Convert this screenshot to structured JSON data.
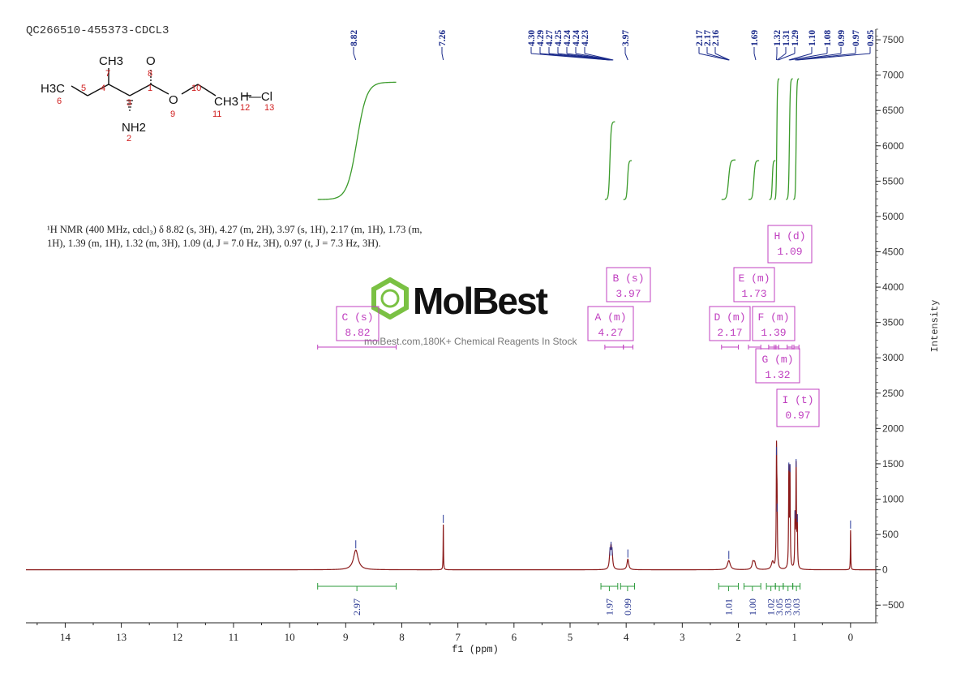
{
  "chart_data": {
    "type": "line",
    "title": "QC266510-455373-CDCL3",
    "xlabel": "f1 (ppm)",
    "ylabel": "Intensity",
    "xlim": [
      14.7,
      -0.45
    ],
    "ylim": [
      -750,
      7650
    ],
    "x_ticks": [
      14,
      13,
      12,
      11,
      10,
      9,
      8,
      7,
      6,
      5,
      4,
      3,
      2,
      1,
      0
    ],
    "y_ticks": [
      -500,
      0,
      500,
      1000,
      1500,
      2000,
      2500,
      3000,
      3500,
      4000,
      4500,
      5000,
      5500,
      6000,
      6500,
      7000,
      7500
    ],
    "peak_labels": [
      "8.82",
      "7.26",
      "4.30",
      "4.29",
      "4.27",
      "4.25",
      "4.24",
      "4.24",
      "4.23",
      "3.97",
      "2.17",
      "2.17",
      "2.16",
      "1.69",
      "1.32",
      "1.31",
      "1.29",
      "1.10",
      "1.08",
      "0.99",
      "0.97",
      "0.95"
    ],
    "peaks": [
      {
        "x": 8.82,
        "h": 280,
        "w": 0.05
      },
      {
        "x": 7.26,
        "h": 640,
        "w": 0.004
      },
      {
        "x": 4.29,
        "h": 180,
        "w": 0.013
      },
      {
        "x": 4.27,
        "h": 260,
        "w": 0.013
      },
      {
        "x": 4.25,
        "h": 180,
        "w": 0.013
      },
      {
        "x": 3.97,
        "h": 150,
        "w": 0.018
      },
      {
        "x": 2.17,
        "h": 130,
        "w": 0.03
      },
      {
        "x": 1.74,
        "h": 100,
        "w": 0.02
      },
      {
        "x": 1.71,
        "h": 90,
        "w": 0.02
      },
      {
        "x": 1.39,
        "h": 110,
        "w": 0.025
      },
      {
        "x": 1.32,
        "h": 1600,
        "w": 0.006
      },
      {
        "x": 1.31,
        "h": 800,
        "w": 0.006
      },
      {
        "x": 1.1,
        "h": 1380,
        "w": 0.006
      },
      {
        "x": 1.08,
        "h": 1360,
        "w": 0.006
      },
      {
        "x": 0.99,
        "h": 700,
        "w": 0.006
      },
      {
        "x": 0.97,
        "h": 1430,
        "w": 0.006
      },
      {
        "x": 0.95,
        "h": 650,
        "w": 0.006
      },
      {
        "x": 0.0,
        "h": 560,
        "w": 0.004
      }
    ],
    "integral_curves": [
      {
        "x_start": 9.5,
        "x_end": 8.1,
        "y_start": 5240,
        "y_end": 6900,
        "center": 8.82
      },
      {
        "x_start": 4.38,
        "x_end": 4.2,
        "y_start": 5240,
        "y_end": 6340,
        "center": 4.27
      },
      {
        "x_start": 4.05,
        "x_end": 3.9,
        "y_start": 5240,
        "y_end": 5790,
        "center": 3.97
      },
      {
        "x_start": 2.3,
        "x_end": 2.05,
        "y_start": 5240,
        "y_end": 5800,
        "center": 2.17
      },
      {
        "x_start": 1.82,
        "x_end": 1.63,
        "y_start": 5240,
        "y_end": 5790,
        "center": 1.73
      },
      {
        "x_start": 1.45,
        "x_end": 1.34,
        "y_start": 5240,
        "y_end": 5790,
        "center": 1.39
      },
      {
        "x_start": 1.36,
        "x_end": 1.27,
        "y_start": 5240,
        "y_end": 6950,
        "center": 1.32
      },
      {
        "x_start": 1.15,
        "x_end": 1.03,
        "y_start": 5240,
        "y_end": 6950,
        "center": 1.09
      },
      {
        "x_start": 1.02,
        "x_end": 0.92,
        "y_start": 5240,
        "y_end": 6950,
        "center": 0.97
      }
    ],
    "integrations": [
      {
        "value": "2.97",
        "x_start": 9.5,
        "x_end": 8.1
      },
      {
        "value": "1.97",
        "x_start": 4.45,
        "x_end": 4.15
      },
      {
        "value": "0.99",
        "x_start": 4.1,
        "x_end": 3.85
      },
      {
        "value": "1.01",
        "x_start": 2.35,
        "x_end": 2.0
      },
      {
        "value": "1.00",
        "x_start": 1.9,
        "x_end": 1.6
      },
      {
        "value": "1.02",
        "x_start": 1.5,
        "x_end": 1.34
      },
      {
        "value": "3.05",
        "x_start": 1.34,
        "x_end": 1.2
      },
      {
        "value": "3.03",
        "x_start": 1.2,
        "x_end": 1.03
      },
      {
        "value": "3.03",
        "x_start": 1.03,
        "x_end": 0.9
      }
    ],
    "multiplets": [
      {
        "name": "A",
        "type": "(m)",
        "shift": "4.27",
        "range": [
          4.38,
          4.05
        ]
      },
      {
        "name": "B",
        "type": "(s)",
        "shift": "3.97",
        "range": [
          4.02,
          3.92
        ]
      },
      {
        "name": "C",
        "type": "(s)",
        "shift": "8.82",
        "range": [
          9.5,
          8.1
        ]
      },
      {
        "name": "D",
        "type": "(m)",
        "shift": "2.17",
        "range": [
          2.3,
          2.0
        ]
      },
      {
        "name": "E",
        "type": "(m)",
        "shift": "1.73",
        "range": [
          1.82,
          1.6
        ]
      },
      {
        "name": "F",
        "type": "(m)",
        "shift": "1.39",
        "range": [
          1.46,
          1.33
        ]
      },
      {
        "name": "G",
        "type": "(m)",
        "shift": "1.32",
        "range": [
          1.36,
          1.28
        ]
      },
      {
        "name": "H",
        "type": "(d)",
        "shift": "1.09",
        "range": [
          1.13,
          1.04
        ]
      },
      {
        "name": "I",
        "type": "(t)",
        "shift": "0.97",
        "range": [
          1.01,
          0.92
        ]
      }
    ],
    "colors": {
      "spectrum": "#8b1a1a",
      "integral": "#3a9a2a",
      "multiplet": "#c040c0",
      "peak_label": "#1a2a8a",
      "axis": "#222222",
      "integration_line": "#2a9a3a"
    }
  },
  "description": {
    "line1": "¹H NMR (400 MHz, cdcl₃) δ 8.82 (s, 3H), 4.27 (m, 2H), 3.97 (s, 1H), 2.17 (m, 1H), 1.73 (m,",
    "line2": "1H), 1.39 (m, 1H), 1.32 (m, 3H), 1.09 (d, J = 7.0 Hz, 3H), 0.97 (t, J = 7.3 Hz, 3H)."
  },
  "watermark": {
    "brand": "MolBest",
    "subtitle": "molBest.com,180K+ Chemical Reagents In Stock"
  },
  "molecule": {
    "labels": {
      "ch3_top": "CH3",
      "o_top": "O",
      "h3c": "H3C",
      "o_mid": "O",
      "ch3_right": "CH3",
      "hcl": "H—Cl",
      "nh2": "NH2",
      "n6": "6",
      "n5": "5",
      "n4": "4",
      "n7": "7",
      "n3": "3",
      "n1": "1",
      "n8": "8",
      "n9": "9",
      "n10": "10",
      "n11": "11",
      "n12": "12",
      "n13": "13",
      "n2": "2"
    }
  }
}
